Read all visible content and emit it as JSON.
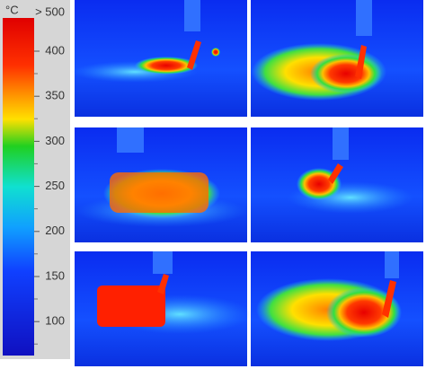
{
  "colorbar": {
    "unit": "°C",
    "max_label": "> 500",
    "ticks": [
      400,
      350,
      300,
      250,
      200,
      150,
      100
    ]
  }
}
